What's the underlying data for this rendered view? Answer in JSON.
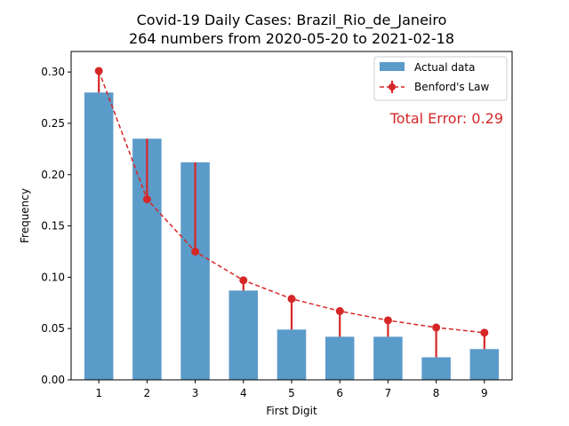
{
  "chart_data": {
    "type": "bar",
    "title_line1": "Covid-19 Daily Cases: Brazil_Rio_de_Janeiro",
    "title_line2": "264 numbers from 2020-05-20 to 2021-02-18",
    "xlabel": "First Digit",
    "ylabel": "Frequency",
    "categories": [
      "1",
      "2",
      "3",
      "4",
      "5",
      "6",
      "7",
      "8",
      "9"
    ],
    "ylim": [
      0,
      0.32
    ],
    "yticks": [
      0.0,
      0.05,
      0.1,
      0.15,
      0.2,
      0.25,
      0.3
    ],
    "ytick_labels": [
      "0.00",
      "0.05",
      "0.10",
      "0.15",
      "0.20",
      "0.25",
      "0.30"
    ],
    "series": [
      {
        "name": "Actual data",
        "kind": "bar",
        "color": "#5b9bc9",
        "values": [
          0.28,
          0.235,
          0.212,
          0.087,
          0.049,
          0.042,
          0.042,
          0.022,
          0.03
        ]
      },
      {
        "name": "Benford's Law",
        "kind": "line",
        "color": "#d62728",
        "values": [
          0.301,
          0.176,
          0.125,
          0.097,
          0.079,
          0.067,
          0.058,
          0.051,
          0.046
        ]
      }
    ],
    "annotation": "Total Error: 0.29",
    "annotation_color": "#d62728",
    "legend_position": "top-right",
    "grid": false
  }
}
